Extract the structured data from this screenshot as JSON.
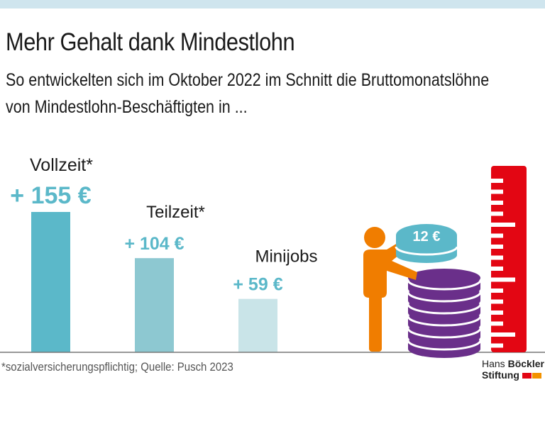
{
  "title": "Mehr Gehalt dank Mindestlohn",
  "subtitle_line1": "So entwickelten sich im Oktober 2022 im Schnitt die Bruttomonatslöhne",
  "subtitle_line2": "von Mindestlohn-Beschäftigten in ...",
  "footnote": "*sozialversicherungspflichtig; Quelle: Pusch 2023",
  "logo": {
    "line1_a": "Hans",
    "line1_b": "Böckler",
    "line2": "Stiftung"
  },
  "illustration": {
    "coin_label": "12 €"
  },
  "colors": {
    "accent": "#5bb8c9",
    "bar1": "#5bb8c9",
    "bar2": "#8dc8d1",
    "bar3": "#c9e4e8",
    "person": "#f07d00",
    "coins": "#6a2f8a",
    "ruler": "#e30613",
    "topbar": "#cfe5ee"
  },
  "chart_data": {
    "type": "bar",
    "categories": [
      "Vollzeit*",
      "Teilzeit*",
      "Minijobs"
    ],
    "values": [
      155,
      104,
      59
    ],
    "labels": [
      "+ 155 €",
      "+ 104 €",
      "+ 59 €"
    ],
    "unit": "€",
    "grid": false
  }
}
